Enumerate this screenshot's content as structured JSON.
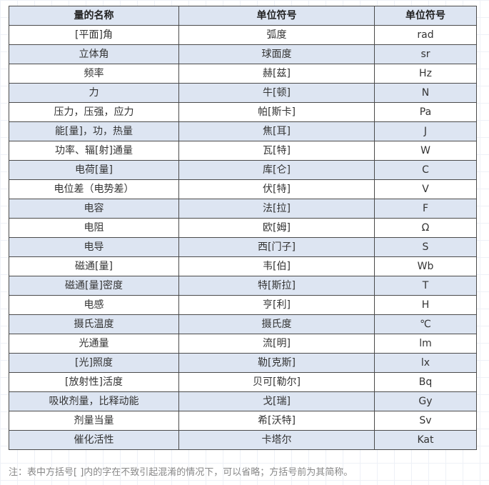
{
  "table": {
    "headers": [
      "量的名称",
      "单位符号",
      "单位符号"
    ],
    "rows": [
      [
        "[平面]角",
        "弧度",
        "rad"
      ],
      [
        "立体角",
        "球面度",
        "sr"
      ],
      [
        "频率",
        "赫[兹]",
        "Hz"
      ],
      [
        "力",
        "牛[顿]",
        "N"
      ],
      [
        "压力，压强，应力",
        "帕[斯卡]",
        "Pa"
      ],
      [
        "能[量]，功，热量",
        "焦[耳]",
        "J"
      ],
      [
        "功率、辐[射]通量",
        "瓦[特]",
        "W"
      ],
      [
        "电荷[量]",
        "库[仑]",
        "C"
      ],
      [
        "电位差（电势差）",
        "伏[特]",
        "V"
      ],
      [
        "电容",
        "法[拉]",
        "F"
      ],
      [
        "电阻",
        "欧[姆]",
        "Ω"
      ],
      [
        "电导",
        "西[门子]",
        "S"
      ],
      [
        "磁通[量]",
        "韦[伯]",
        "Wb"
      ],
      [
        "磁通[量]密度",
        "特[斯拉]",
        "T"
      ],
      [
        "电感",
        "亨[利]",
        "H"
      ],
      [
        "摄氏温度",
        "摄氏度",
        "℃"
      ],
      [
        "光通量",
        "流[明]",
        "lm"
      ],
      [
        "[光]照度",
        "勒[克斯]",
        "lx"
      ],
      [
        "[放射性]活度",
        "贝可[勒尔]",
        "Bq"
      ],
      [
        "吸收剂量，比释动能",
        "戈[瑞]",
        "Gy"
      ],
      [
        "剂量当量",
        "希[沃特]",
        "Sv"
      ],
      [
        "催化活性",
        "卡塔尔",
        "Kat"
      ]
    ]
  },
  "note": "注：表中方括号[ ]内的字在不致引起混淆的情况下，可以省略；方括号前为其简称。",
  "colors": {
    "stripe": "#dde5f2",
    "border": "#4b4b4b",
    "note_text": "#888888"
  }
}
